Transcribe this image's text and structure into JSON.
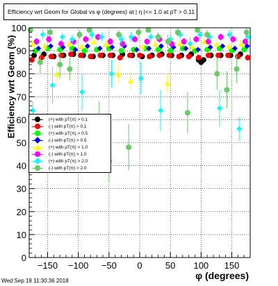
{
  "title": "Efficiency wrt Geom for Global vs φ (degrees) at | η |<= 1.0 at pT > 0.11",
  "timestamp": "Wed Sep 19 11:30:36 2018",
  "chart_data": {
    "type": "scatter",
    "title": "Efficiency wrt Geom for Global vs φ (degrees) at | η |<= 1.0 at pT > 0.11",
    "xlabel": "φ (degrees)",
    "ylabel": "Efficiency wrt Geom (%)",
    "xlim": [
      -180,
      180
    ],
    "ylim": [
      0,
      100
    ],
    "xticks": [
      -150,
      -100,
      -50,
      0,
      50,
      100,
      150
    ],
    "yticks": [
      0,
      10,
      20,
      30,
      40,
      50,
      60,
      70,
      80,
      90,
      100
    ],
    "grid": true,
    "legend_position": "left",
    "series": [
      {
        "name": "(+) with pT(π) > 0.1",
        "color": "#000000",
        "marker": "circle",
        "x": [
          -172,
          -156,
          -140,
          -124,
          -108,
          -92,
          -76,
          -60,
          -44,
          -28,
          -12,
          4,
          20,
          36,
          52,
          68,
          84,
          96,
          100,
          104,
          116,
          132,
          148,
          164
        ],
        "y": [
          88,
          88.5,
          87.5,
          88,
          88.5,
          88,
          87.5,
          88,
          88,
          88.5,
          88,
          87.5,
          88,
          88.5,
          88,
          88,
          88.5,
          86,
          85,
          86,
          88,
          88,
          88,
          88.5
        ],
        "err": [
          0.5,
          0.5,
          0.5,
          0.5,
          0.5,
          0.5,
          0.5,
          0.5,
          0.5,
          0.5,
          0.5,
          0.5,
          0.5,
          0.5,
          0.5,
          0.5,
          0.5,
          0.8,
          1,
          0.8,
          0.5,
          0.5,
          0.5,
          0.5
        ]
      },
      {
        "name": "(-) with pT(π) > 0.1",
        "color": "#ff0000",
        "marker": "circle",
        "x": [
          -176,
          -160,
          -144,
          -128,
          -112,
          -96,
          -80,
          -64,
          -48,
          -32,
          -16,
          0,
          16,
          32,
          48,
          64,
          80,
          96,
          112,
          128,
          144,
          160,
          176
        ],
        "y": [
          86,
          87,
          87.5,
          88,
          88.5,
          88,
          87.5,
          88,
          88,
          87,
          88,
          88,
          87.5,
          88,
          88,
          87.5,
          87.5,
          87,
          88,
          88,
          88,
          87.5,
          87
        ],
        "err": [
          0.6,
          0.6,
          0.6,
          0.6,
          0.6,
          0.6,
          0.6,
          0.6,
          0.6,
          0.6,
          0.6,
          0.6,
          0.6,
          0.6,
          0.6,
          0.6,
          0.6,
          0.6,
          0.6,
          0.6,
          0.6,
          0.6,
          0.6
        ]
      },
      {
        "name": "(+) with pT(π) > 0.5",
        "color": "#00ff00",
        "marker": "circle",
        "x": [
          -170,
          -150,
          -130,
          -110,
          -90,
          -70,
          -50,
          -30,
          -10,
          10,
          30,
          50,
          70,
          90,
          110,
          130,
          150,
          170
        ],
        "y": [
          90,
          91,
          90.5,
          91,
          90,
          90.5,
          91,
          90,
          90.5,
          91,
          90.5,
          90,
          91,
          90,
          90.5,
          91,
          90,
          90.5
        ],
        "err": [
          0.8,
          0.8,
          0.8,
          0.8,
          0.8,
          0.8,
          0.8,
          0.8,
          0.8,
          0.8,
          0.8,
          0.8,
          0.8,
          0.8,
          0.8,
          0.8,
          0.8,
          0.8
        ]
      },
      {
        "name": "(-) with pT(π) > 0.5",
        "color": "#0000ff",
        "marker": "diamond",
        "x": [
          -165,
          -145,
          -125,
          -105,
          -85,
          -65,
          -45,
          -25,
          -5,
          15,
          35,
          55,
          75,
          95,
          115,
          135,
          155,
          175
        ],
        "y": [
          91,
          92,
          91.5,
          90.5,
          92,
          91,
          91.5,
          92,
          90.5,
          91,
          92,
          91.5,
          91,
          90.5,
          91.5,
          92,
          91,
          92
        ],
        "err": [
          0.8,
          0.8,
          0.8,
          0.8,
          0.8,
          0.8,
          0.8,
          0.8,
          0.8,
          0.8,
          0.8,
          0.8,
          0.8,
          0.8,
          0.8,
          0.8,
          0.8,
          0.8
        ]
      },
      {
        "name": "(+) with pT(π) > 1.0",
        "color": "#ffff00",
        "marker": "triangle",
        "x": [
          -175,
          -155,
          -135,
          -115,
          -95,
          -75,
          -55,
          -35,
          -15,
          5,
          25,
          45,
          65,
          85,
          105,
          125,
          145,
          165
        ],
        "y": [
          93,
          92,
          80,
          93,
          92,
          94,
          93,
          80,
          77,
          92,
          93,
          76,
          93,
          92,
          94,
          93,
          92,
          93
        ],
        "err": [
          1.5,
          1.5,
          4,
          1.5,
          1.5,
          1.5,
          1.5,
          4,
          4,
          1.5,
          1.5,
          4,
          1.5,
          1.5,
          1.5,
          1.5,
          1.5,
          1.5
        ]
      },
      {
        "name": "(-) with pT(π) > 1.0",
        "color": "#ff00ff",
        "marker": "circle",
        "x": [
          -168,
          -148,
          -128,
          -108,
          -88,
          -68,
          -48,
          -28,
          -8,
          12,
          32,
          52,
          72,
          92,
          112,
          132,
          152,
          172
        ],
        "y": [
          94,
          95,
          93,
          94,
          95,
          96,
          94,
          93,
          95,
          94,
          95,
          93,
          94,
          95,
          94,
          96,
          95,
          94
        ],
        "err": [
          1.5,
          1.5,
          1.5,
          1.5,
          1.5,
          1.5,
          1.5,
          1.5,
          1.5,
          1.5,
          1.5,
          1.5,
          1.5,
          1.5,
          1.5,
          1.5,
          1.5,
          1.5
        ]
      },
      {
        "name": "(+) with pT(π) > 2.0",
        "color": "#00ffff",
        "marker": "diamond",
        "x": [
          -174,
          -158,
          -142,
          -126,
          -110,
          -94,
          -78,
          -62,
          -46,
          -30,
          -14,
          2,
          18,
          34,
          50,
          66,
          82,
          98,
          114,
          130,
          146,
          162,
          176
        ],
        "y": [
          64,
          97,
          75,
          96,
          95,
          72,
          97,
          96,
          80,
          95,
          96,
          78,
          96,
          64,
          95,
          97,
          93,
          97,
          96,
          65,
          97,
          56,
          96
        ],
        "err": [
          4,
          2,
          8,
          2,
          2,
          8,
          2,
          2,
          6,
          2,
          2,
          7,
          2,
          9,
          2,
          2,
          3,
          2,
          2,
          8,
          2,
          5,
          2
        ]
      },
      {
        "name": "(-) with pT(π) > 2.0",
        "color": "#66cc66",
        "marker": "circle",
        "x": [
          -178,
          -162,
          -146,
          -130,
          -114,
          -98,
          -82,
          -66,
          -50,
          -34,
          -18,
          -2,
          14,
          30,
          46,
          62,
          78,
          94,
          110,
          126,
          142,
          158,
          174
        ],
        "y": [
          99,
          85,
          98,
          84,
          82,
          97,
          99,
          60,
          42,
          97,
          48,
          98,
          99,
          96,
          94,
          98,
          63,
          99,
          97,
          80,
          73,
          82,
          98
        ],
        "err": [
          1,
          5,
          2,
          6,
          5,
          2,
          1,
          8,
          9,
          2,
          10,
          2,
          1,
          2,
          3,
          2,
          9,
          1,
          2,
          7,
          8,
          6,
          2
        ]
      }
    ]
  }
}
